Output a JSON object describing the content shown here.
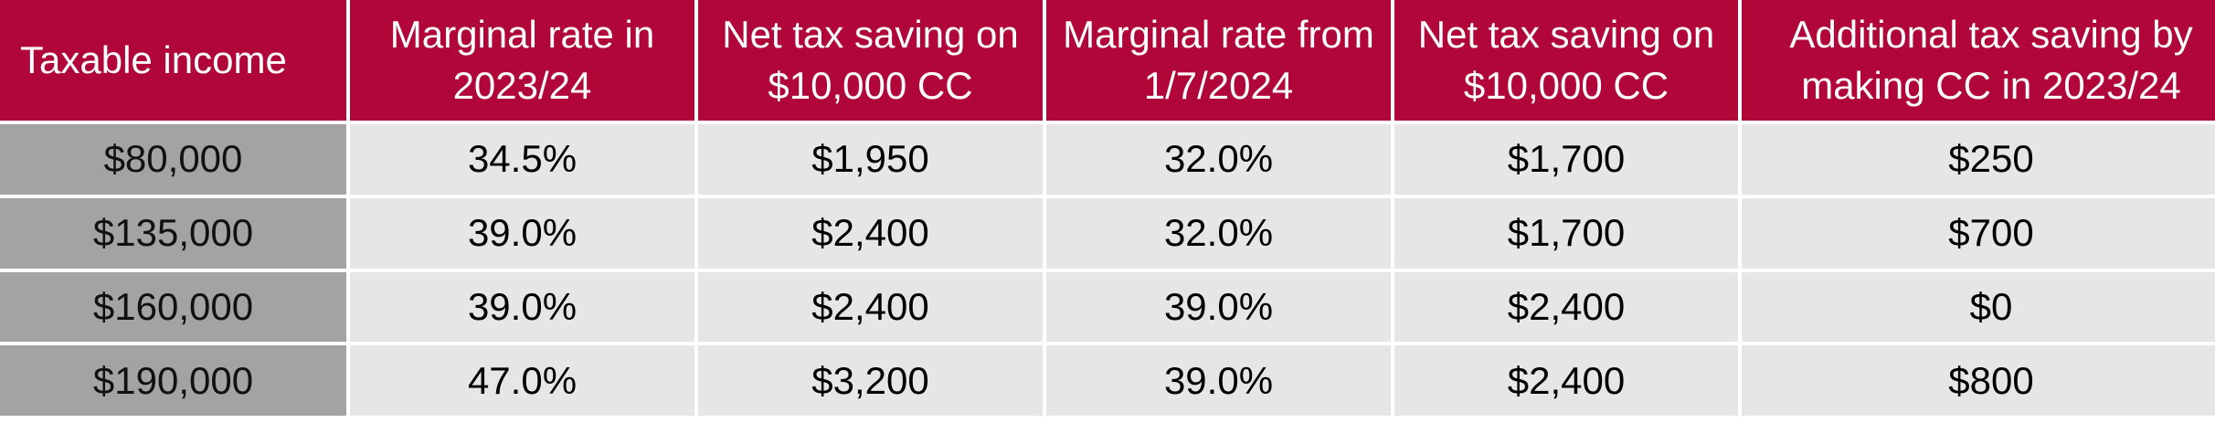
{
  "headers": [
    "Taxable income",
    "Marginal rate in 2023/24",
    "Net tax saving on $10,000 CC",
    "Marginal rate from 1/7/2024",
    "Net tax saving on $10,000 CC",
    "Additional tax saving by making CC in 2023/24"
  ],
  "rows": [
    {
      "income": "$80,000",
      "rate_2324": "34.5%",
      "saving_2324": "$1,950",
      "rate_2024": "32.0%",
      "saving_2024": "$1,700",
      "additional": "$250"
    },
    {
      "income": "$135,000",
      "rate_2324": "39.0%",
      "saving_2324": "$2,400",
      "rate_2024": "32.0%",
      "saving_2024": "$1,700",
      "additional": "$700"
    },
    {
      "income": "$160,000",
      "rate_2324": "39.0%",
      "saving_2324": "$2,400",
      "rate_2024": "39.0%",
      "saving_2024": "$2,400",
      "additional": "$0"
    },
    {
      "income": "$190,000",
      "rate_2324": "47.0%",
      "saving_2324": "$3,200",
      "rate_2024": "39.0%",
      "saving_2024": "$2,400",
      "additional": "$800"
    }
  ],
  "colors": {
    "header_bg": "#b0063a",
    "header_text": "#ffffff",
    "income_cell_bg": "#a3a3a3",
    "data_cell_bg": "#e6e6e6"
  }
}
